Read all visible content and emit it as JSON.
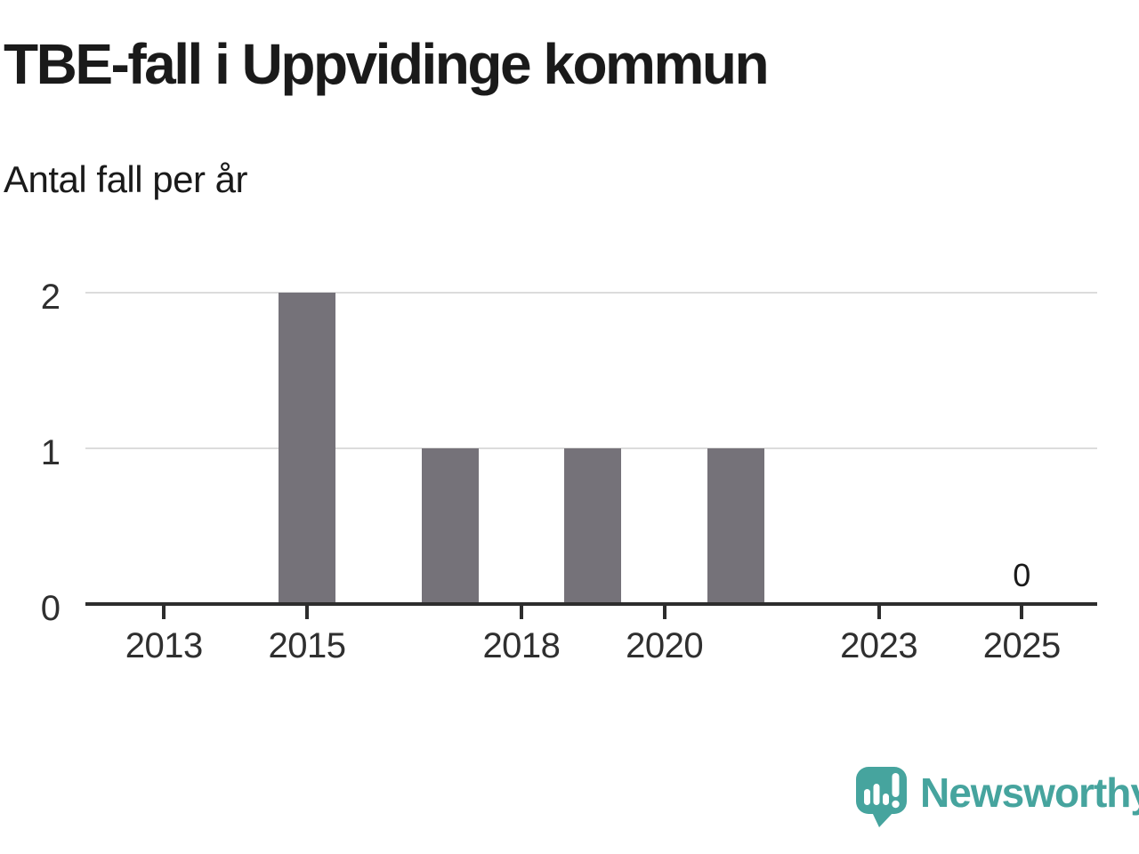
{
  "header": {
    "title": "TBE-fall i Uppvidinge kommun",
    "subtitle": "Antal fall per år"
  },
  "chart_data": {
    "type": "bar",
    "title": "TBE-fall i Uppvidinge kommun",
    "subtitle": "Antal fall per år",
    "ylabel": "Antal fall per år",
    "categories": [
      2012,
      2013,
      2014,
      2015,
      2016,
      2017,
      2018,
      2019,
      2020,
      2021,
      2022,
      2023,
      2024,
      2025
    ],
    "values": [
      0,
      0,
      0,
      2,
      0,
      1,
      0,
      1,
      0,
      1,
      0,
      0,
      0,
      0
    ],
    "x_ticks": [
      "2013",
      "2015",
      "2018",
      "2020",
      "2023",
      "2025"
    ],
    "y_ticks": [
      "0",
      "1",
      "2"
    ],
    "ylim": [
      0,
      2
    ],
    "grid": "horizontal",
    "legend": "none",
    "bar_color": "#757279",
    "value_labels": [
      {
        "category": 2025,
        "text": "0"
      }
    ]
  },
  "footer": {
    "brand": "Newsworthy",
    "logo_icon": "newsworthy-speech-bubble-bar-chart-icon"
  },
  "colors": {
    "title": "#1a1a1a",
    "label": "#2f2f2f",
    "axis": "#2d2d2d",
    "grid": "#dcdcdc",
    "bar": "#757279",
    "brand": "#46a49e",
    "icon_glyph": "#ffffff"
  }
}
